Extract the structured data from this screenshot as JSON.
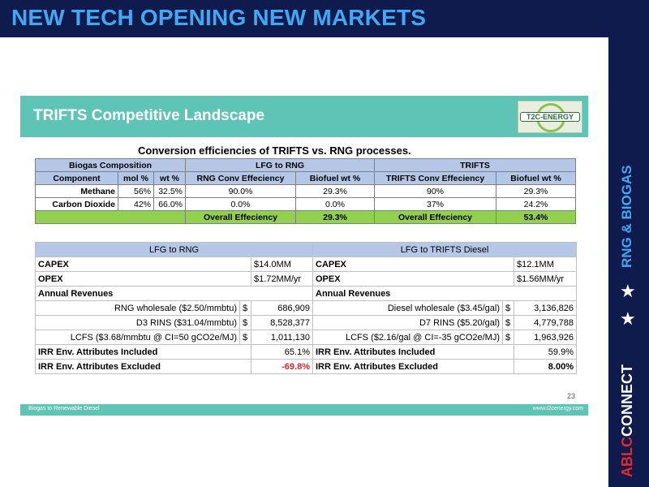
{
  "header": {
    "title": "NEW TECH OPENING NEW MARKETS"
  },
  "sidebar": {
    "tag": "RNG & BIOGAS",
    "brand_red": "ABLC",
    "brand_white": "CONNECT",
    "star_icon": "★"
  },
  "slide": {
    "title": "TRIFTS Competitive Landscape",
    "logo_text": "T2C-ENERGY",
    "conversion_title": "Conversion efficiencies of TRIFTS vs. RNG processes.",
    "efficiency_table": {
      "group_headers": [
        "Biogas Composition",
        "LFG to RNG",
        "TRIFTS"
      ],
      "column_headers": [
        "Component",
        "mol %",
        "wt %",
        "RNG Conv Effeciency",
        "Biofuel wt %",
        "TRIFTS Conv Effeciency",
        "Biofuel wt %"
      ],
      "rows": [
        [
          "Methane",
          "56%",
          "32.5%",
          "90.0%",
          "29.3%",
          "90%",
          "29.3%"
        ],
        [
          "Carbon Dioxide",
          "42%",
          "66.0%",
          "0.0%",
          "0.0%",
          "37%",
          "24.2%"
        ]
      ],
      "overall": {
        "label": "Overall Effeciency",
        "rng": "29.3%",
        "trifts": "53.4%"
      }
    },
    "economics_table": {
      "headers": [
        "LFG to RNG",
        "LFG to TRIFTS Diesel"
      ],
      "capex": {
        "label": "CAPEX",
        "rng": "$14.0MM",
        "trifts": "$12.1MM"
      },
      "opex": {
        "label": "OPEX",
        "rng": "$1.72MM/yr",
        "trifts": "$1.56MM/yr"
      },
      "annual_revenues_label": "Annual Revenues",
      "revenues": [
        {
          "rng_label": "RNG wholesale ($2.50/mmbtu)",
          "rng_value": "686,909",
          "trifts_label": "Diesel wholesale ($3.45/gal)",
          "trifts_value": "3,136,826"
        },
        {
          "rng_label": "D3 RINS ($31.04/mmbtu)",
          "rng_value": "8,528,377",
          "trifts_label": "D7 RINS ($5.20/gal)",
          "trifts_value": "4,779,788"
        },
        {
          "rng_label": "LCFS ($3.68/mmbtu @ CI=50 gCO2e/MJ)",
          "rng_value": "1,011,130",
          "trifts_label": "LCFS ($2.16/gal @ CI=-35 gCO2e/MJ)",
          "trifts_value": "1,963,926"
        }
      ],
      "currency": "$",
      "irr_included": {
        "label": "IRR Env. Attributes Included",
        "rng": "65.1%",
        "trifts": "59.9%"
      },
      "irr_excluded": {
        "label": "IRR  Env. Attributes Excluded",
        "rng": "-69.8%",
        "trifts": "8.00%"
      }
    },
    "page_number": "23",
    "footer_left": "Biogas to Renewable Diesel",
    "footer_right": "www.t2cenergy.com"
  },
  "colors": {
    "navy": "#0f1b4c",
    "blue": "#3fa9f5",
    "teal": "#5ec4b6",
    "green": "#92d050",
    "header_blue": "#b4c7e7",
    "red": "#e8262b"
  }
}
